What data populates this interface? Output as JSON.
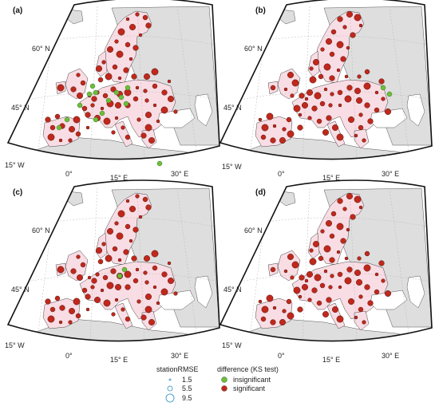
{
  "panels": [
    {
      "label": "(a)",
      "green": [
        [
          112,
          118
        ],
        [
          120,
          116
        ],
        [
          146,
          116
        ],
        [
          152,
          122
        ],
        [
          158,
          130
        ],
        [
          128,
          142
        ],
        [
          120,
          150
        ],
        [
          84,
          150
        ],
        [
          74,
          160
        ],
        [
          116,
          108
        ],
        [
          160,
          110
        ],
        [
          200,
          205
        ],
        [
          100,
          132
        ],
        [
          136,
          126
        ]
      ]
    },
    {
      "label": "(b)",
      "green": [
        [
          480,
          110
        ],
        [
          488,
          118
        ]
      ]
    },
    {
      "label": "(c)",
      "green": [
        [
          150,
          346
        ],
        [
          156,
          338
        ]
      ]
    },
    {
      "label": "(d)",
      "green": []
    }
  ],
  "grid_labels": {
    "lat60": "60° N",
    "lat45": "45° N",
    "lon15w": "15° W",
    "lon0": "0°",
    "lon15e": "15° E",
    "lon30e": "30° E"
  },
  "legend": {
    "size_title": "stationRMSE",
    "sizes": [
      {
        "label": "1.5",
        "value": 1.5
      },
      {
        "label": "5.5",
        "value": 5.5
      },
      {
        "label": "9.5",
        "value": 9.5
      }
    ],
    "color_title": "difference (KS test)",
    "classes": [
      {
        "label": "insignificant",
        "color": "#6abf3a"
      },
      {
        "label": "significant",
        "color": "#c0281c"
      }
    ]
  },
  "colors": {
    "significant": "#c0281c",
    "insignificant": "#6abf3a",
    "study_area": "#f9dde4",
    "land": "#dedede"
  }
}
